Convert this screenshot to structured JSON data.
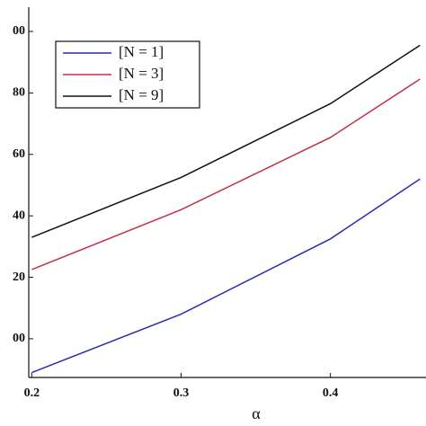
{
  "chart_data": {
    "type": "line",
    "x_label": "α",
    "x": [
      0.2,
      0.3,
      0.4,
      0.46
    ],
    "series": [
      {
        "name": "[N = 1]",
        "color": "#2b2bb0",
        "values": [
          -11,
          8,
          32.5,
          52
        ]
      },
      {
        "name": "[N = 3]",
        "color": "#c0304a",
        "values": [
          22.5,
          42,
          65.5,
          84.5
        ]
      },
      {
        "name": "[N = 9]",
        "color": "#111111",
        "values": [
          33,
          52.5,
          76.5,
          95.5
        ]
      }
    ],
    "xlim": [
      0.198,
      0.464
    ],
    "ylim": [
      -12.6,
      107.9
    ],
    "xticks": [
      0.2,
      0.3,
      0.4
    ],
    "yticks": [
      {
        "value": 0,
        "label": "00"
      },
      20,
      40,
      60,
      80,
      {
        "value": 100,
        "label": "00"
      }
    ],
    "legend": "upper left"
  }
}
